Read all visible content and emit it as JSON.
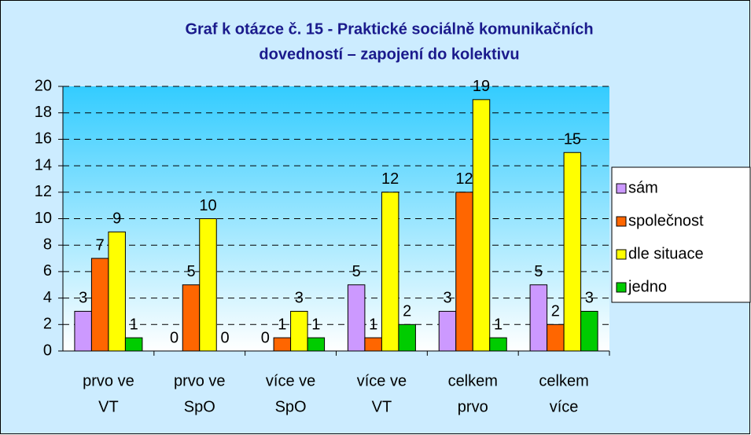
{
  "chart_data": {
    "type": "bar",
    "title": [
      "Graf k otázce č. 15 - Praktické sociálně komunikačních",
      "dovedností – zapojení do kolektivu"
    ],
    "categories": [
      [
        "prvo ve",
        "VT"
      ],
      [
        "prvo ve",
        "SpO"
      ],
      [
        "více ve",
        "SpO"
      ],
      [
        "více ve",
        "VT"
      ],
      [
        "celkem",
        "prvo"
      ],
      [
        "celkem",
        "více"
      ]
    ],
    "series": [
      {
        "name": "sám",
        "color": "#cc99ff",
        "values": [
          3,
          0,
          0,
          5,
          3,
          5
        ]
      },
      {
        "name": "společnost",
        "color": "#ff6600",
        "values": [
          7,
          5,
          1,
          1,
          12,
          2
        ]
      },
      {
        "name": "dle situace",
        "color": "#ffff00",
        "values": [
          9,
          10,
          3,
          12,
          19,
          15
        ]
      },
      {
        "name": "jedno",
        "color": "#00cc00",
        "values": [
          1,
          0,
          1,
          2,
          1,
          3
        ]
      }
    ],
    "ylim": [
      0,
      20
    ],
    "yticks": [
      0,
      2,
      4,
      6,
      8,
      10,
      12,
      14,
      16,
      18,
      20
    ],
    "grid": true,
    "legend": "right"
  }
}
